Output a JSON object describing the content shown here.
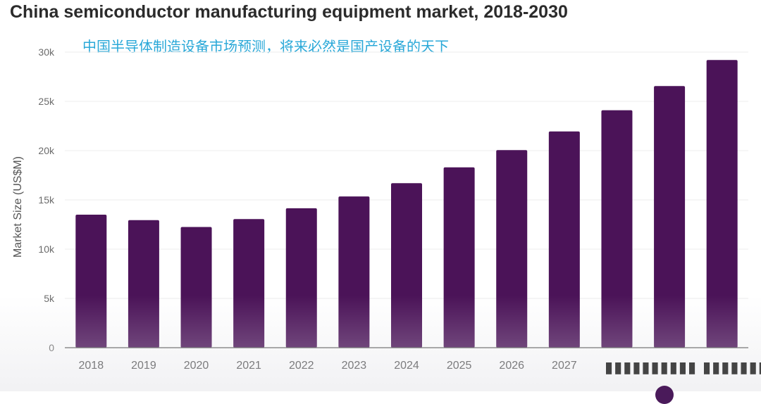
{
  "header": {
    "title": "China semiconductor manufacturing equipment market, 2018-2030",
    "subtitle": "中国半导体制造设备市场预测，将来必然是国产设备的天下"
  },
  "colors": {
    "bar": "#4b1358",
    "grid": "#ececec",
    "subtitle": "#29a8d8"
  },
  "overlay": {
    "icons": "player-controls-icon"
  },
  "chart_data": {
    "type": "bar",
    "title": "China semiconductor manufacturing equipment market, 2018-2030",
    "subtitle": "中国半导体制造设备市场预测，将来必然是国产设备的天下",
    "ylabel": "Market Size (US$M)",
    "xlabel": "",
    "categories": [
      "2018",
      "2019",
      "2020",
      "2021",
      "2022",
      "2023",
      "2024",
      "2025",
      "2026",
      "2027",
      "2028",
      "2029",
      "2030"
    ],
    "x_tick_labels": [
      "2018",
      "2019",
      "2020",
      "2021",
      "2022",
      "2023",
      "2024",
      "2025",
      "2026",
      "2027",
      "",
      "",
      ""
    ],
    "values": [
      13500,
      12950,
      12250,
      13050,
      14150,
      15350,
      16700,
      18300,
      20050,
      21950,
      24100,
      26550,
      29200
    ],
    "ylim": [
      0,
      30000
    ],
    "yticks": [
      0,
      5000,
      10000,
      15000,
      20000,
      25000,
      30000
    ],
    "ytick_labels": [
      "0",
      "5k",
      "10k",
      "15k",
      "20k",
      "25k",
      "30k"
    ],
    "grid": true,
    "legend": "none"
  }
}
